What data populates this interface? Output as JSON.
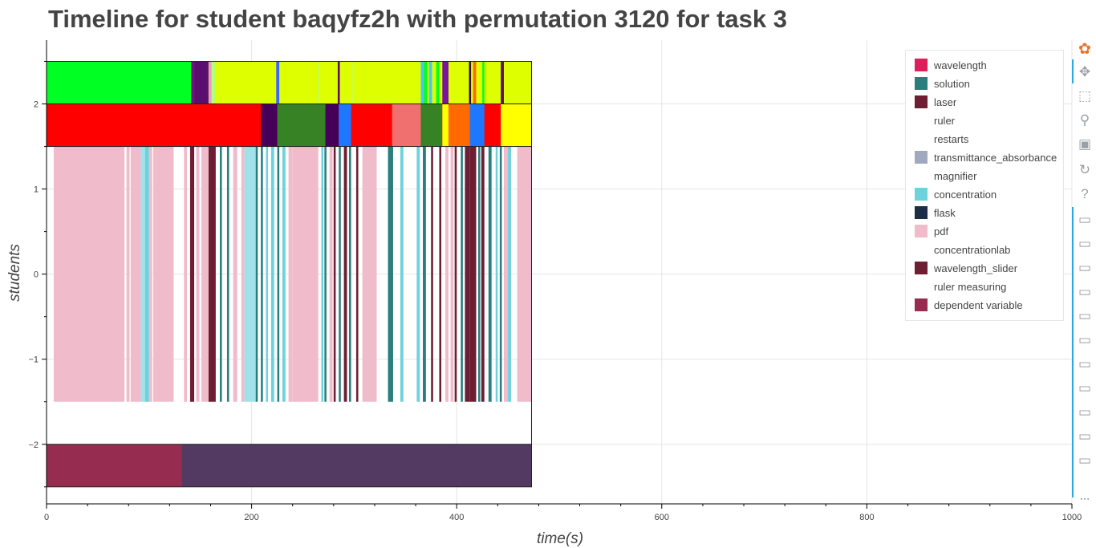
{
  "title": "Timeline for student baqyfz2h with permutation 3120 for task 3",
  "chart_data": {
    "type": "timeline",
    "title": "Timeline for student baqyfz2h with permutation 3120 for task 3",
    "xlabel": "time(s)",
    "ylabel": "students",
    "xlim": [
      0,
      1000
    ],
    "ylim": [
      -2.7,
      2.75
    ],
    "x_ticks": [
      0,
      200,
      400,
      600,
      800,
      1000
    ],
    "y_ticks": [
      -2,
      -1,
      0,
      1,
      2
    ],
    "y_tick_labels": [
      "−2",
      "−1",
      "0",
      "1",
      "2"
    ],
    "grid": true,
    "legend_position": "top-right",
    "legend": [
      {
        "label": "wavelength",
        "color": "#dc1e5a"
      },
      {
        "label": "solution",
        "color": "#2a7e7e"
      },
      {
        "label": "laser",
        "color": "#6e1e32"
      },
      {
        "label": "ruler",
        "color": ""
      },
      {
        "label": "restarts",
        "color": ""
      },
      {
        "label": "transmittance_absorbance",
        "color": "#a0aabe"
      },
      {
        "label": "magnifier",
        "color": ""
      },
      {
        "label": "concentration",
        "color": "#6ed2dc"
      },
      {
        "label": "flask",
        "color": "#1e2d46"
      },
      {
        "label": "pdf",
        "color": "#f0bccc"
      },
      {
        "label": "concentrationlab",
        "color": ""
      },
      {
        "label": "wavelength_slider",
        "color": "#6e1e32"
      },
      {
        "label": "ruler measuring",
        "color": ""
      },
      {
        "label": "dependent variable",
        "color": "#962d50"
      }
    ],
    "rows": [
      {
        "y0": 2,
        "y1": 2.5,
        "base_color": "#ddff00",
        "segments": [
          {
            "x0": 0,
            "x1": 141,
            "color": "#00ff22"
          },
          {
            "x0": 141,
            "x1": 144,
            "color": "#780f8c"
          },
          {
            "x0": 144,
            "x1": 158,
            "color": "#5a0f6e"
          },
          {
            "x0": 158,
            "x1": 161,
            "color": "#e8a0b8"
          },
          {
            "x0": 161,
            "x1": 165,
            "color": "#b4ff78"
          },
          {
            "x0": 224,
            "x1": 227,
            "color": "#3c64ff"
          },
          {
            "x0": 264,
            "x1": 266,
            "color": "#c8ff46"
          },
          {
            "x0": 284,
            "x1": 286,
            "color": "#5a0f6e"
          },
          {
            "x0": 298,
            "x1": 300,
            "color": "#c8ff46"
          },
          {
            "x0": 365,
            "x1": 368,
            "color": "#46c8ff"
          },
          {
            "x0": 368,
            "x1": 371,
            "color": "#00ff22"
          },
          {
            "x0": 373,
            "x1": 376,
            "color": "#46c8ff"
          },
          {
            "x0": 380,
            "x1": 383,
            "color": "#00ff22"
          },
          {
            "x0": 386,
            "x1": 392,
            "color": "#7814a0"
          },
          {
            "x0": 412,
            "x1": 414,
            "color": "#3c0a5a"
          },
          {
            "x0": 416,
            "x1": 419,
            "color": "#ff6a00"
          },
          {
            "x0": 425,
            "x1": 427,
            "color": "#00ff22"
          },
          {
            "x0": 443,
            "x1": 446,
            "color": "#5a0f6e"
          }
        ]
      },
      {
        "y0": 1.5,
        "y1": 2,
        "base_color": "#ff0000",
        "segments": [
          {
            "x0": 209,
            "x1": 225,
            "color": "#46005a"
          },
          {
            "x0": 225,
            "x1": 272,
            "color": "#368224"
          },
          {
            "x0": 272,
            "x1": 285,
            "color": "#46005a"
          },
          {
            "x0": 285,
            "x1": 297,
            "color": "#1e78ff"
          },
          {
            "x0": 337,
            "x1": 365,
            "color": "#f07070"
          },
          {
            "x0": 365,
            "x1": 386,
            "color": "#368224"
          },
          {
            "x0": 386,
            "x1": 392,
            "color": "#ffff00"
          },
          {
            "x0": 392,
            "x1": 413,
            "color": "#ff6a00"
          },
          {
            "x0": 413,
            "x1": 427,
            "color": "#1e78ff"
          },
          {
            "x0": 443,
            "x1": 473,
            "color": "#ffff00"
          }
        ]
      },
      {
        "y0": -1.5,
        "y1": 1.5,
        "base_color": "#ffffff",
        "segments": [
          {
            "x0": 7,
            "x1": 76,
            "color": "#f0bccc"
          },
          {
            "x0": 78,
            "x1": 81,
            "color": "#f0bccc"
          },
          {
            "x0": 82,
            "x1": 92,
            "color": "#f0bccc"
          },
          {
            "x0": 92,
            "x1": 96,
            "color": "#a0e2ea"
          },
          {
            "x0": 96,
            "x1": 100,
            "color": "#6ed2dc"
          },
          {
            "x0": 100,
            "x1": 103,
            "color": "#f0bccc"
          },
          {
            "x0": 104,
            "x1": 124,
            "color": "#f0bccc"
          },
          {
            "x0": 134,
            "x1": 137,
            "color": "#f0bccc"
          },
          {
            "x0": 140,
            "x1": 144,
            "color": "#6e1e32"
          },
          {
            "x0": 146,
            "x1": 149,
            "color": "#f0bccc"
          },
          {
            "x0": 151,
            "x1": 158,
            "color": "#f0bccc"
          },
          {
            "x0": 158,
            "x1": 165,
            "color": "#6e1e32"
          },
          {
            "x0": 169,
            "x1": 171,
            "color": "#2a7e7e"
          },
          {
            "x0": 176,
            "x1": 178,
            "color": "#2a7e7e"
          },
          {
            "x0": 182,
            "x1": 186,
            "color": "#f0bccc"
          },
          {
            "x0": 190,
            "x1": 193,
            "color": "#f0bccc"
          },
          {
            "x0": 193,
            "x1": 204,
            "color": "#a0e2ea"
          },
          {
            "x0": 204,
            "x1": 206,
            "color": "#2a7e7e"
          },
          {
            "x0": 209,
            "x1": 211,
            "color": "#2a7e7e"
          },
          {
            "x0": 214,
            "x1": 216,
            "color": "#6ed2dc"
          },
          {
            "x0": 219,
            "x1": 222,
            "color": "#6ed2dc"
          },
          {
            "x0": 225,
            "x1": 227,
            "color": "#2a7e7e"
          },
          {
            "x0": 230,
            "x1": 233,
            "color": "#6ed2dc"
          },
          {
            "x0": 236,
            "x1": 240,
            "color": "#f0bccc"
          },
          {
            "x0": 240,
            "x1": 265,
            "color": "#f0bccc"
          },
          {
            "x0": 268,
            "x1": 270,
            "color": "#6ed2dc"
          },
          {
            "x0": 271,
            "x1": 273,
            "color": "#2a7e7e"
          },
          {
            "x0": 276,
            "x1": 279,
            "color": "#f0bccc"
          },
          {
            "x0": 280,
            "x1": 282,
            "color": "#6e1e32"
          },
          {
            "x0": 285,
            "x1": 287,
            "color": "#2a7e7e"
          },
          {
            "x0": 290,
            "x1": 293,
            "color": "#6e1e32"
          },
          {
            "x0": 295,
            "x1": 297,
            "color": "#2a7e7e"
          },
          {
            "x0": 302,
            "x1": 304,
            "color": "#6e1e32"
          },
          {
            "x0": 308,
            "x1": 322,
            "color": "#f0bccc"
          },
          {
            "x0": 333,
            "x1": 338,
            "color": "#2a7e7e"
          },
          {
            "x0": 345,
            "x1": 348,
            "color": "#6ed2dc"
          },
          {
            "x0": 361,
            "x1": 364,
            "color": "#6ed2dc"
          },
          {
            "x0": 367,
            "x1": 370,
            "color": "#2a7e7e"
          },
          {
            "x0": 375,
            "x1": 377,
            "color": "#6e1e32"
          },
          {
            "x0": 383,
            "x1": 385,
            "color": "#6e1e32"
          },
          {
            "x0": 389,
            "x1": 392,
            "color": "#f0bccc"
          },
          {
            "x0": 394,
            "x1": 397,
            "color": "#f0bccc"
          },
          {
            "x0": 398,
            "x1": 400,
            "color": "#6e1e32"
          },
          {
            "x0": 404,
            "x1": 406,
            "color": "#2a7e7e"
          },
          {
            "x0": 408,
            "x1": 413,
            "color": "#6e1e32"
          },
          {
            "x0": 413,
            "x1": 419,
            "color": "#6e1e32"
          },
          {
            "x0": 421,
            "x1": 423,
            "color": "#2a7e7e"
          },
          {
            "x0": 424,
            "x1": 427,
            "color": "#6e1e32"
          },
          {
            "x0": 431,
            "x1": 434,
            "color": "#2a7e7e"
          },
          {
            "x0": 438,
            "x1": 440,
            "color": "#6ed2dc"
          },
          {
            "x0": 442,
            "x1": 444,
            "color": "#2a7e7e"
          },
          {
            "x0": 446,
            "x1": 450,
            "color": "#f0bccc"
          },
          {
            "x0": 450,
            "x1": 453,
            "color": "#6ed2dc"
          },
          {
            "x0": 459,
            "x1": 473,
            "color": "#f0bccc"
          }
        ]
      },
      {
        "y0": -2.5,
        "y1": -2,
        "base_color": "#523a62",
        "segments": [
          {
            "x0": 0,
            "x1": 132,
            "color": "#962d50"
          }
        ]
      }
    ],
    "outline_x_end": 473
  },
  "toolbar": {
    "tools": [
      {
        "name": "bokeh-logo-icon",
        "glyph": "✿",
        "active": false
      },
      {
        "name": "pan-icon",
        "glyph": "✥",
        "active": true
      },
      {
        "name": "box-zoom-icon",
        "glyph": "⬚",
        "active": false
      },
      {
        "name": "wheel-zoom-icon",
        "glyph": "⚲",
        "active": false
      },
      {
        "name": "save-icon",
        "glyph": "▣",
        "active": false
      },
      {
        "name": "reset-icon",
        "glyph": "↻",
        "active": false
      },
      {
        "name": "help-icon",
        "glyph": "?",
        "active": false
      },
      {
        "name": "hover-icon",
        "glyph": "▭",
        "active": true
      },
      {
        "name": "hover-icon",
        "glyph": "▭",
        "active": true
      },
      {
        "name": "hover-icon",
        "glyph": "▭",
        "active": true
      },
      {
        "name": "hover-icon",
        "glyph": "▭",
        "active": true
      },
      {
        "name": "hover-icon",
        "glyph": "▭",
        "active": true
      },
      {
        "name": "hover-icon",
        "glyph": "▭",
        "active": true
      },
      {
        "name": "hover-icon",
        "glyph": "▭",
        "active": true
      },
      {
        "name": "hover-icon",
        "glyph": "▭",
        "active": true
      },
      {
        "name": "hover-icon",
        "glyph": "▭",
        "active": true
      },
      {
        "name": "hover-icon",
        "glyph": "▭",
        "active": true
      },
      {
        "name": "hover-icon",
        "glyph": "▭",
        "active": true
      },
      {
        "name": "more-icon",
        "glyph": "⋯",
        "active": false
      }
    ]
  }
}
